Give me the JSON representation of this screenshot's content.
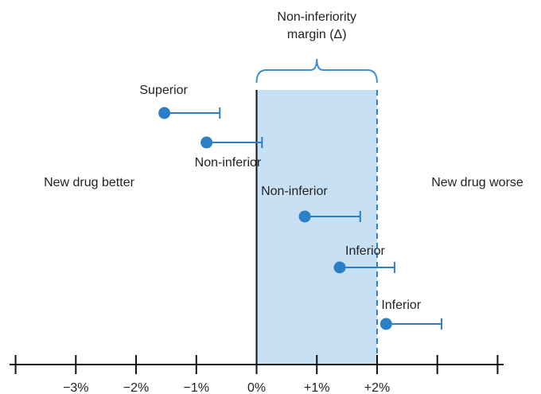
{
  "chart_data": {
    "type": "interval",
    "margin_label": [
      "Non-inferiority",
      "margin (Δ)"
    ],
    "left_label": "New drug better",
    "right_label": "New drug worse",
    "margin": 2,
    "names": [
      "Superior",
      "Non-inferior",
      "Non-inferior",
      "Inferior",
      "Inferior"
    ],
    "values": [
      -1.53,
      -0.83,
      0.8,
      1.38,
      2.15
    ],
    "upper": [
      -0.61,
      0.09,
      1.72,
      2.29,
      3.07
    ],
    "color": "#2b7fc4",
    "shade_color": "#c8e0f4",
    "xlim": [
      -4.1,
      4.1
    ],
    "xticks": [
      {
        "value": -4,
        "label": null
      },
      {
        "value": -3,
        "label": "−3%"
      },
      {
        "value": -2,
        "label": "−2%"
      },
      {
        "value": -1,
        "label": "−1%"
      },
      {
        "value": 0,
        "label": "0%"
      },
      {
        "value": 1,
        "label": "+1%"
      },
      {
        "value": 2,
        "label": "+2%"
      },
      {
        "value": 3,
        "label": null
      },
      {
        "value": 4,
        "label": null
      }
    ]
  }
}
